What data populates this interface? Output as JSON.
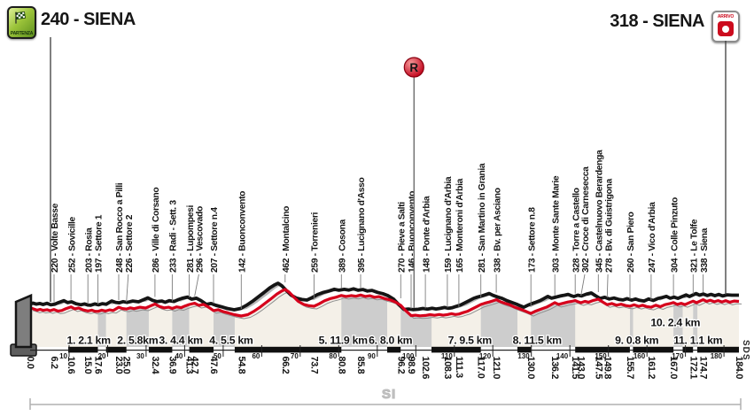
{
  "header": {
    "start_title": "240 - SIENA",
    "finish_title": "318 - SIENA",
    "partenza_badge": "PARTENZA",
    "arrivo_badge": "ARRIVO"
  },
  "watermarks": {
    "si": "SI",
    "sds": "SDS"
  },
  "colors": {
    "road_red": "#d6001c",
    "profile_black": "#151515",
    "terrain_gray": "#b9b9b9",
    "sector_band_gray": "#cdcdcd",
    "area_cream": "#f4f0e8",
    "badge_green": "#7daa28",
    "badge_red": "#cc0c1e"
  },
  "chart_data": {
    "type": "area",
    "x_axis": {
      "unit": "km",
      "range": [
        0,
        184
      ],
      "ticks": [
        10,
        20,
        30,
        40,
        50,
        60,
        70,
        80,
        90,
        100,
        110,
        120,
        130,
        140,
        150,
        160,
        170,
        180
      ]
    },
    "start": {
      "km": 0.0,
      "elevation": 240,
      "name": "SIENA"
    },
    "finish": {
      "km": 184.0,
      "elevation": 318,
      "name": "SIENA"
    },
    "refreshment": {
      "symbol": "R",
      "km": 100
    },
    "waypoints": [
      {
        "km": 6.2,
        "elevation": 220,
        "name": "Volte Basse"
      },
      {
        "km": 10.6,
        "elevation": 252,
        "name": "Sovicille"
      },
      {
        "km": 15.0,
        "elevation": 203,
        "name": "Rosia"
      },
      {
        "km": 17.6,
        "elevation": 197,
        "name": "Settore 1"
      },
      {
        "km": 23.0,
        "elevation": 248,
        "name": "San Rocco a Pilli"
      },
      {
        "km": 25.0,
        "elevation": 226,
        "name": "Settore 2"
      },
      {
        "km": 32.4,
        "elevation": 286,
        "name": "Ville di Corsano"
      },
      {
        "km": 36.9,
        "elevation": 233,
        "name": "Radi - Sett. 3"
      },
      {
        "km": 41.3,
        "elevation": 281,
        "name": "Lupompesi"
      },
      {
        "km": 42.7,
        "elevation": 296,
        "name": "Vescovado"
      },
      {
        "km": 47.6,
        "elevation": 207,
        "name": "Settore n.4"
      },
      {
        "km": 54.8,
        "elevation": 142,
        "name": "Buonconvento"
      },
      {
        "km": 66.2,
        "elevation": 462,
        "name": "Montalcino"
      },
      {
        "km": 73.7,
        "elevation": 259,
        "name": "Torrenieri"
      },
      {
        "km": 80.8,
        "elevation": 389,
        "name": "Cosona"
      },
      {
        "km": 85.8,
        "elevation": 395,
        "name": "Lucignano d'Asso"
      },
      {
        "km": 96.2,
        "elevation": 270,
        "name": "Pieve a Salti"
      },
      {
        "km": 98.9,
        "elevation": 146,
        "name": "Buonconvento"
      },
      {
        "km": 102.6,
        "elevation": 148,
        "name": "Ponte d'Arbia"
      },
      {
        "km": 108.3,
        "elevation": 159,
        "name": "Lucignano d'Arbia"
      },
      {
        "km": 111.3,
        "elevation": 165,
        "name": "Monteroni d'Arbia"
      },
      {
        "km": 117.0,
        "elevation": 281,
        "name": "San Martino in Grania"
      },
      {
        "km": 121.0,
        "elevation": 338,
        "name": "Bv. per Asciano"
      },
      {
        "km": 130.0,
        "elevation": 173,
        "name": "Settore n.8"
      },
      {
        "km": 136.2,
        "elevation": 303,
        "name": "Monte Sante Marie"
      },
      {
        "km": 141.5,
        "elevation": 328,
        "name": "Torre a Castello"
      },
      {
        "km": 143.0,
        "elevation": 302,
        "name": "Croce di Carnesecca"
      },
      {
        "km": 147.5,
        "elevation": 345,
        "name": "Castelnuovo Berardenga"
      },
      {
        "km": 149.8,
        "elevation": 278,
        "name": "Bv. di Guistrigona"
      },
      {
        "km": 155.7,
        "elevation": 260,
        "name": "San Piero"
      },
      {
        "km": 161.2,
        "elevation": 247,
        "name": "Vico d'Arbia"
      },
      {
        "km": 167.0,
        "elevation": 304,
        "name": "Colle Pinzuto"
      },
      {
        "km": 172.1,
        "elevation": 321,
        "name": "Le Tolfe"
      },
      {
        "km": 174.7,
        "elevation": 338,
        "name": "Siena"
      }
    ],
    "gravel_sectors": [
      {
        "number": 1,
        "start_km": 17.6,
        "length_km": 2.1,
        "label": "1. 2.1 km"
      },
      {
        "number": 2,
        "start_km": 25.0,
        "length_km": 5.8,
        "label": "2. 5.8km"
      },
      {
        "number": 3,
        "start_km": 36.9,
        "length_km": 4.4,
        "label": "3. 4.4 km"
      },
      {
        "number": 4,
        "start_km": 47.6,
        "length_km": 5.5,
        "label": "4. 5.5 km"
      },
      {
        "number": 5,
        "start_km": 80.8,
        "length_km": 11.9,
        "label": "5. 11.9 km"
      },
      {
        "number": 6,
        "start_km": 96.2,
        "length_km": 8.0,
        "label": "6. 8.0 km"
      },
      {
        "number": 7,
        "start_km": 117.0,
        "length_km": 9.5,
        "label": "7. 9.5 km"
      },
      {
        "number": 8,
        "start_km": 130.0,
        "length_km": 11.5,
        "label": "8. 11.5 km"
      },
      {
        "number": 9,
        "start_km": 155.7,
        "length_km": 0.8,
        "label": "9. 0.8 km"
      },
      {
        "number": 10,
        "start_km": 167.0,
        "length_km": 2.4,
        "label": "10. 2.4 km"
      },
      {
        "number": 11,
        "start_km": 172.1,
        "length_km": 1.1,
        "label": "11. 1.1 km"
      }
    ],
    "profile": [
      [
        0,
        240
      ],
      [
        0.8,
        228
      ],
      [
        1.8,
        212
      ],
      [
        2.6,
        222
      ],
      [
        3.4,
        210
      ],
      [
        4.4,
        218
      ],
      [
        5.2,
        206
      ],
      [
        6.2,
        220
      ],
      [
        7.2,
        202
      ],
      [
        8.2,
        208
      ],
      [
        9.2,
        228
      ],
      [
        10.6,
        252
      ],
      [
        11.6,
        228
      ],
      [
        12.6,
        238
      ],
      [
        13.8,
        214
      ],
      [
        15,
        203
      ],
      [
        16,
        212
      ],
      [
        16.8,
        200
      ],
      [
        17.6,
        197
      ],
      [
        18.6,
        212
      ],
      [
        19.6,
        202
      ],
      [
        20.6,
        216
      ],
      [
        21.6,
        208
      ],
      [
        23,
        248
      ],
      [
        24,
        232
      ],
      [
        25,
        226
      ],
      [
        26,
        240
      ],
      [
        27,
        230
      ],
      [
        28.5,
        248
      ],
      [
        30,
        238
      ],
      [
        31.2,
        262
      ],
      [
        32.4,
        286
      ],
      [
        33.6,
        256
      ],
      [
        34.8,
        240
      ],
      [
        36,
        248
      ],
      [
        36.9,
        233
      ],
      [
        38,
        252
      ],
      [
        39.2,
        242
      ],
      [
        40.2,
        262
      ],
      [
        41.3,
        281
      ],
      [
        42.7,
        296
      ],
      [
        43.8,
        270
      ],
      [
        45,
        282
      ],
      [
        46.2,
        252
      ],
      [
        47.6,
        207
      ],
      [
        48.8,
        218
      ],
      [
        50,
        196
      ],
      [
        51.5,
        178
      ],
      [
        53,
        158
      ],
      [
        54.8,
        142
      ],
      [
        56.5,
        158
      ],
      [
        58,
        196
      ],
      [
        59.5,
        242
      ],
      [
        61,
        296
      ],
      [
        62.5,
        348
      ],
      [
        64,
        404
      ],
      [
        65.2,
        440
      ],
      [
        66.2,
        462
      ],
      [
        67.2,
        430
      ],
      [
        68.4,
        372
      ],
      [
        69.6,
        318
      ],
      [
        71,
        282
      ],
      [
        72.4,
        266
      ],
      [
        73.7,
        259
      ],
      [
        75,
        288
      ],
      [
        76.4,
        324
      ],
      [
        78,
        352
      ],
      [
        79.4,
        368
      ],
      [
        80.8,
        389
      ],
      [
        82,
        378
      ],
      [
        83.4,
        388
      ],
      [
        84.6,
        380
      ],
      [
        85.8,
        395
      ],
      [
        87,
        378
      ],
      [
        88.2,
        386
      ],
      [
        89.4,
        368
      ],
      [
        90.6,
        376
      ],
      [
        92,
        352
      ],
      [
        93.4,
        336
      ],
      [
        94.8,
        310
      ],
      [
        96.2,
        270
      ],
      [
        97.4,
        210
      ],
      [
        98.9,
        146
      ],
      [
        100,
        152
      ],
      [
        101.2,
        144
      ],
      [
        102.6,
        148
      ],
      [
        103.8,
        158
      ],
      [
        105,
        150
      ],
      [
        106.2,
        160
      ],
      [
        107.2,
        152
      ],
      [
        108.3,
        159
      ],
      [
        109.4,
        170
      ],
      [
        110.4,
        160
      ],
      [
        111.3,
        165
      ],
      [
        112.4,
        182
      ],
      [
        113.6,
        200
      ],
      [
        114.8,
        228
      ],
      [
        116,
        256
      ],
      [
        117,
        281
      ],
      [
        118,
        296
      ],
      [
        119.2,
        310
      ],
      [
        120,
        322
      ],
      [
        121,
        338
      ],
      [
        122,
        316
      ],
      [
        123.2,
        296
      ],
      [
        124.4,
        278
      ],
      [
        125.6,
        252
      ],
      [
        127,
        228
      ],
      [
        128.4,
        204
      ],
      [
        129.2,
        188
      ],
      [
        130,
        173
      ],
      [
        131,
        196
      ],
      [
        132,
        214
      ],
      [
        133,
        232
      ],
      [
        134.2,
        252
      ],
      [
        135.2,
        276
      ],
      [
        136.2,
        303
      ],
      [
        137.2,
        282
      ],
      [
        138.4,
        296
      ],
      [
        139.6,
        310
      ],
      [
        140.6,
        318
      ],
      [
        141.5,
        328
      ],
      [
        142.2,
        314
      ],
      [
        143,
        302
      ],
      [
        144,
        318
      ],
      [
        145,
        308
      ],
      [
        146.2,
        330
      ],
      [
        147.5,
        345
      ],
      [
        148.6,
        312
      ],
      [
        149.8,
        278
      ],
      [
        151,
        292
      ],
      [
        152.2,
        272
      ],
      [
        153.4,
        284
      ],
      [
        154.6,
        268
      ],
      [
        155.7,
        260
      ],
      [
        156.8,
        276
      ],
      [
        158,
        258
      ],
      [
        159,
        272
      ],
      [
        160,
        256
      ],
      [
        161.2,
        247
      ],
      [
        162.4,
        272
      ],
      [
        163.6,
        254
      ],
      [
        164.8,
        278
      ],
      [
        166,
        290
      ],
      [
        167,
        304
      ],
      [
        168,
        282
      ],
      [
        169,
        294
      ],
      [
        170,
        280
      ],
      [
        171,
        300
      ],
      [
        172.1,
        321
      ],
      [
        173,
        302
      ],
      [
        174.7,
        338
      ],
      [
        175.6,
        318
      ],
      [
        176.6,
        332
      ],
      [
        177.6,
        314
      ],
      [
        178.6,
        328
      ],
      [
        179.6,
        312
      ],
      [
        180.6,
        326
      ],
      [
        181.6,
        308
      ],
      [
        182.8,
        322
      ],
      [
        184,
        318
      ]
    ]
  }
}
